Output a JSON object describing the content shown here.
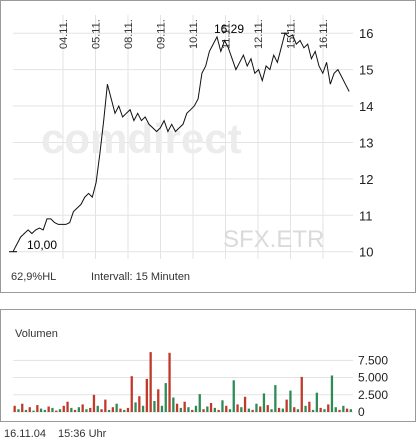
{
  "chart_data": [
    {
      "type": "line",
      "title": "",
      "xlabel": "",
      "ylabel": "",
      "ylim": [
        9.8,
        16.5
      ],
      "y_ticks": [
        10,
        11,
        12,
        13,
        14,
        15,
        16
      ],
      "x_ticks": [
        "04.11.",
        "05.11.",
        "08.11.",
        "09.11.",
        "10.11.",
        "11.11.",
        "12.11.",
        "15.11.",
        "16.11."
      ],
      "watermark": "comdirect",
      "source_label": "SFX.ETR",
      "min_label": "10,00",
      "max_label": "16,29",
      "min_value": 10.0,
      "max_value": 16.29,
      "x_range": [
        0,
        9
      ],
      "x": [
        0.0,
        0.1,
        0.2,
        0.3,
        0.4,
        0.5,
        0.6,
        0.7,
        0.8,
        0.9,
        1.0,
        1.1,
        1.2,
        1.3,
        1.4,
        1.5,
        1.6,
        1.7,
        1.8,
        1.9,
        2.0,
        2.1,
        2.2,
        2.3,
        2.4,
        2.5,
        2.6,
        2.7,
        2.8,
        2.9,
        3.0,
        3.1,
        3.2,
        3.3,
        3.4,
        3.5,
        3.6,
        3.7,
        3.8,
        3.9,
        4.0,
        4.1,
        4.2,
        4.3,
        4.4,
        4.5,
        4.6,
        4.7,
        4.8,
        4.9,
        5.0,
        5.1,
        5.2,
        5.3,
        5.4,
        5.5,
        5.6,
        5.7,
        5.8,
        5.9,
        6.0,
        6.1,
        6.2,
        6.3,
        6.4,
        6.5,
        6.6,
        6.7,
        6.8,
        6.9,
        7.0,
        7.1,
        7.2,
        7.3,
        7.4,
        7.5,
        7.6,
        7.7,
        7.8,
        7.9,
        8.0,
        8.1,
        8.2,
        8.3,
        8.4,
        8.5,
        8.6,
        8.7,
        8.8,
        8.9
      ],
      "series": [
        {
          "name": "",
          "values": [
            10.0,
            10.2,
            10.4,
            10.5,
            10.6,
            10.5,
            10.6,
            10.65,
            10.6,
            10.9,
            10.9,
            10.8,
            10.75,
            10.75,
            10.75,
            10.8,
            11.1,
            11.2,
            11.3,
            11.5,
            11.6,
            11.5,
            11.9,
            12.7,
            13.6,
            14.6,
            14.2,
            13.8,
            14.0,
            13.7,
            13.8,
            13.9,
            13.6,
            13.8,
            13.6,
            13.7,
            13.5,
            13.4,
            13.3,
            13.4,
            13.6,
            13.3,
            13.5,
            13.3,
            13.4,
            13.5,
            13.8,
            13.9,
            14.0,
            14.2,
            14.9,
            15.1,
            15.5,
            15.7,
            15.9,
            15.5,
            15.8,
            15.6,
            15.3,
            15.0,
            15.2,
            15.4,
            15.1,
            15.3,
            14.9,
            15.0,
            14.7,
            15.1,
            15.0,
            15.4,
            15.2,
            15.6,
            16.0,
            15.9,
            15.95,
            15.7,
            15.8,
            15.6,
            15.7,
            15.3,
            15.5,
            15.1,
            14.9,
            15.2,
            14.6,
            14.9,
            15.0,
            14.8,
            14.6,
            14.4
          ]
        }
      ]
    },
    {
      "type": "bar",
      "title": "Volumen",
      "ylim": [
        0,
        9000
      ],
      "y_ticks": [
        0,
        2500,
        5000,
        7500
      ],
      "y_tick_labels": [
        "0",
        "2.500",
        "5.000",
        "7.500"
      ],
      "colors": [
        "#c0392b",
        "#2e8b57"
      ],
      "values": [
        900,
        400,
        1200,
        300,
        700,
        200,
        1000,
        500,
        300,
        800,
        600,
        200,
        400,
        900,
        1500,
        600,
        300,
        700,
        1100,
        400,
        600,
        2500,
        900,
        400,
        1800,
        300,
        700,
        1200,
        500,
        300,
        600,
        5200,
        1400,
        2300,
        900,
        4800,
        8700,
        1600,
        3300,
        900,
        4200,
        8600,
        2100,
        1200,
        600,
        1500,
        700,
        300,
        900,
        2600,
        400,
        800,
        1300,
        600,
        300,
        1700,
        900,
        400,
        4600,
        1100,
        700,
        2200,
        500,
        300,
        1200,
        800,
        2700,
        1000,
        400,
        3900,
        600,
        500,
        1800,
        3100,
        700,
        400,
        5100,
        900,
        1500,
        300,
        2800,
        600,
        400,
        1100,
        5300,
        700,
        300,
        900,
        500,
        400
      ],
      "value_colors": [
        "r",
        "g",
        "r",
        "g",
        "r",
        "g",
        "r",
        "g",
        "g",
        "r",
        "g",
        "r",
        "g",
        "r",
        "r",
        "g",
        "r",
        "g",
        "r",
        "g",
        "r",
        "r",
        "g",
        "r",
        "r",
        "g",
        "r",
        "g",
        "r",
        "g",
        "r",
        "r",
        "g",
        "r",
        "g",
        "r",
        "r",
        "g",
        "r",
        "g",
        "g",
        "r",
        "g",
        "r",
        "g",
        "r",
        "g",
        "r",
        "g",
        "g",
        "r",
        "g",
        "r",
        "g",
        "r",
        "g",
        "r",
        "g",
        "g",
        "r",
        "g",
        "r",
        "g",
        "r",
        "g",
        "r",
        "g",
        "r",
        "g",
        "g",
        "r",
        "g",
        "r",
        "g",
        "r",
        "g",
        "r",
        "g",
        "r",
        "g",
        "g",
        "r",
        "g",
        "r",
        "g",
        "g",
        "r",
        "g",
        "r",
        "g"
      ]
    }
  ],
  "price_info": {
    "hl_label": "62,9%HL",
    "interval_label": "Intervall: 15 Minuten"
  },
  "footer": {
    "date": "16.11.04",
    "time": "15:36 Uhr"
  }
}
